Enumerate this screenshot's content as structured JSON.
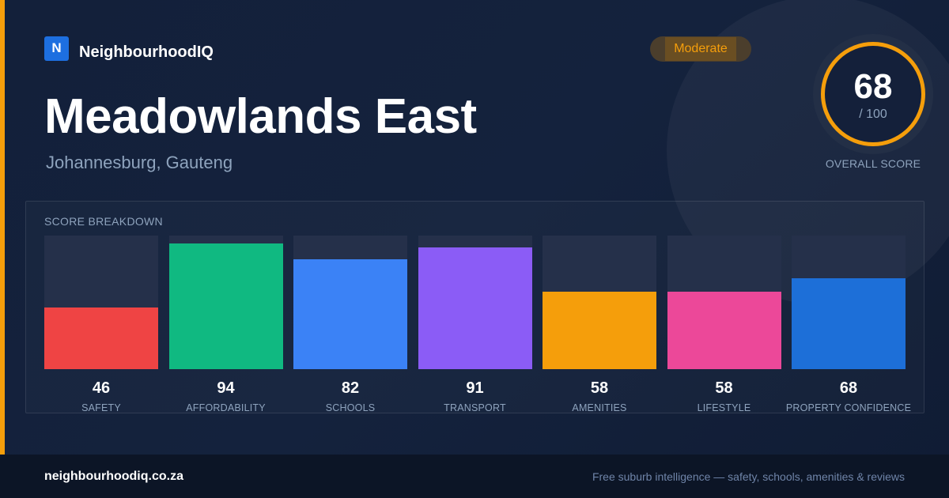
{
  "brand": {
    "logo_letter": "N",
    "name": "NeighbourhoodIQ"
  },
  "suburb": {
    "name": "Meadowlands East",
    "location": "Johannesburg, Gauteng"
  },
  "badge": {
    "label": "Moderate"
  },
  "overall": {
    "score": "68",
    "max": "/ 100",
    "label": "OVERALL SCORE"
  },
  "breakdown": {
    "title": "SCORE BREAKDOWN",
    "categories": [
      {
        "label": "SAFETY",
        "value": 46,
        "color": "#ef4444"
      },
      {
        "label": "AFFORDABILITY",
        "value": 94,
        "color": "#10b981"
      },
      {
        "label": "SCHOOLS",
        "value": 82,
        "color": "#3b82f6"
      },
      {
        "label": "TRANSPORT",
        "value": 91,
        "color": "#8b5cf6"
      },
      {
        "label": "AMENITIES",
        "value": 58,
        "color": "#f59e0b"
      },
      {
        "label": "LIFESTYLE",
        "value": 58,
        "color": "#ec4899"
      },
      {
        "label": "PROPERTY CONFIDENCE",
        "value": 68,
        "color": "#1d6fd8"
      }
    ]
  },
  "colors": {
    "accent": "#f59e0b",
    "background": "#13203a",
    "muted_text": "#8ea3bd"
  },
  "footer": {
    "url": "neighbourhoodiq.co.za",
    "tagline": "Free suburb intelligence — safety, schools, amenities & reviews"
  }
}
